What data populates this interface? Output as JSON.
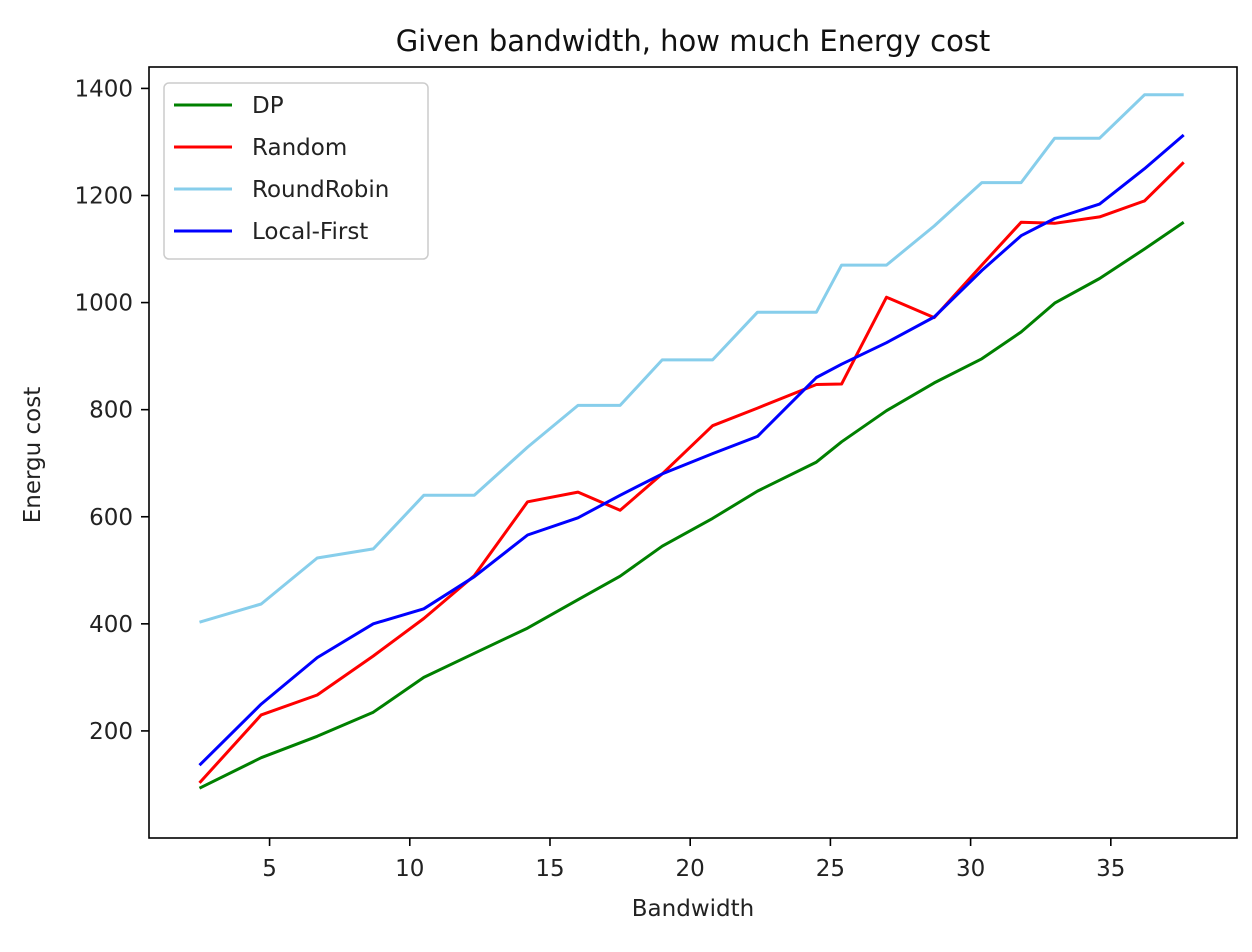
{
  "chart_data": {
    "type": "line",
    "title": "Given bandwidth, how much Energy cost",
    "xlabel": "Bandwidth",
    "ylabel": "Energu cost",
    "xlim": [
      0.7,
      39.5
    ],
    "ylim": [
      0,
      1440
    ],
    "xticks": [
      5,
      10,
      15,
      20,
      25,
      30,
      35
    ],
    "yticks": [
      200,
      400,
      600,
      800,
      1000,
      1200,
      1400
    ],
    "grid": false,
    "legend_position": "top-left",
    "series": [
      {
        "name": "DP",
        "color": "#008000",
        "x": [
          2.5,
          4.7,
          6.7,
          8.7,
          10.5,
          12.3,
          14.2,
          16.0,
          17.5,
          19.0,
          20.8,
          22.4,
          24.5,
          25.4,
          27.0,
          28.7,
          30.4,
          31.8,
          33.0,
          34.6,
          36.2,
          37.6
        ],
        "y": [
          93,
          150,
          190,
          235,
          300,
          345,
          392,
          445,
          489,
          545,
          597,
          648,
          702,
          740,
          798,
          850,
          895,
          945,
          999,
          1045,
          1100,
          1150
        ]
      },
      {
        "name": "Random",
        "color": "#ff0000",
        "x": [
          2.5,
          4.7,
          6.7,
          8.7,
          10.5,
          12.3,
          14.2,
          16.0,
          17.5,
          19.0,
          20.8,
          22.4,
          24.5,
          25.4,
          27.0,
          28.7,
          30.4,
          31.8,
          33.0,
          34.6,
          36.2,
          37.6
        ],
        "y": [
          103,
          230,
          267,
          340,
          410,
          490,
          628,
          646,
          612,
          680,
          770,
          803,
          847,
          848,
          1010,
          972,
          1070,
          1150,
          1148,
          1160,
          1190,
          1262
        ]
      },
      {
        "name": "RoundRobin",
        "color": "#87ceeb",
        "x": [
          2.5,
          4.7,
          6.7,
          8.7,
          10.5,
          12.3,
          14.2,
          16.0,
          17.5,
          19.0,
          20.8,
          22.4,
          24.5,
          25.4,
          27.0,
          28.7,
          30.4,
          31.8,
          33.0,
          34.6,
          36.2,
          37.6
        ],
        "y": [
          403,
          437,
          523,
          540,
          640,
          640,
          730,
          808,
          808,
          893,
          893,
          982,
          982,
          1070,
          1070,
          1143,
          1224,
          1224,
          1307,
          1307,
          1388,
          1388
        ]
      },
      {
        "name": "Local-First",
        "color": "#0000ff",
        "x": [
          2.5,
          4.7,
          6.7,
          8.7,
          10.5,
          12.3,
          14.2,
          16.0,
          17.5,
          19.0,
          20.8,
          22.4,
          24.5,
          25.4,
          27.0,
          28.7,
          30.4,
          31.8,
          33.0,
          34.6,
          36.2,
          37.6
        ],
        "y": [
          136,
          250,
          337,
          400,
          428,
          488,
          566,
          598,
          640,
          680,
          718,
          750,
          860,
          885,
          925,
          973,
          1060,
          1125,
          1157,
          1184,
          1250,
          1313
        ]
      }
    ]
  }
}
